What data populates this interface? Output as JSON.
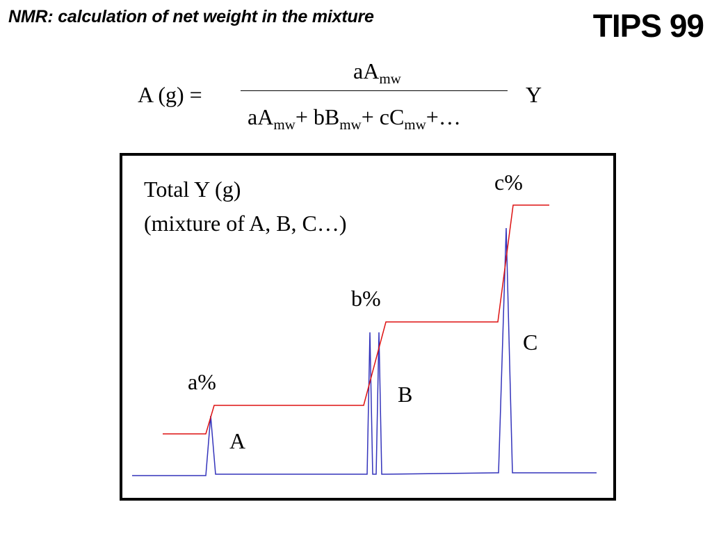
{
  "header": {
    "title": "NMR: calculation of net weight in the mixture",
    "tag": "TIPS 99"
  },
  "formula": {
    "lhs": "A (g) =",
    "numerator": {
      "a": "aA",
      "a_sub": "mw"
    },
    "denominator": {
      "t1": "aA",
      "t1_sub": "mw",
      "op1": "+ bB",
      "t2_sub": "mw",
      "op2": "+ cC",
      "t3_sub": "mw",
      "tail": "+…"
    },
    "rhs": "Y"
  },
  "spectrum": {
    "total_line1": "Total Y (g)",
    "total_line2": "(mixture of A, B, C…)",
    "integral_labels": [
      "a%",
      "b%",
      "c%"
    ],
    "peak_labels": [
      "A",
      "B",
      "C"
    ],
    "colors": {
      "peaks": "#3333bb",
      "integral": "#dd1111",
      "frame": "#000000"
    }
  }
}
